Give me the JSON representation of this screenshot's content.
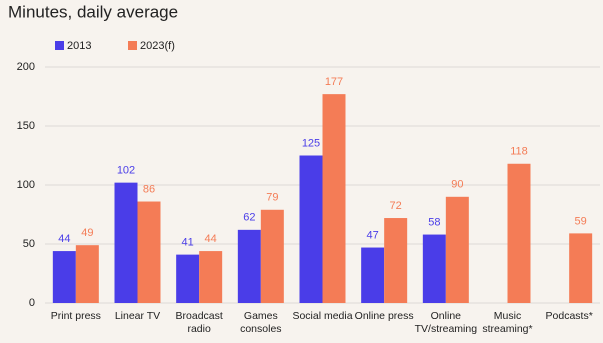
{
  "chart_data": {
    "type": "bar",
    "title": "Minutes, daily average",
    "categories": [
      "Print press",
      "Linear TV",
      "Broadcast\nradio",
      "Games\nconsoles",
      "Social media",
      "Online press",
      "Online\nTV/streaming",
      "Music\nstreaming*",
      "Podcasts*"
    ],
    "series": [
      {
        "name": "2013",
        "color": "#4a3de8",
        "values": [
          44,
          102,
          41,
          62,
          125,
          47,
          58,
          null,
          null
        ]
      },
      {
        "name": "2023(f)",
        "color": "#f47c56",
        "values": [
          49,
          86,
          44,
          79,
          177,
          72,
          90,
          118,
          59
        ]
      }
    ],
    "ylim": [
      0,
      200
    ],
    "yticks": [
      0,
      50,
      100,
      150,
      200
    ],
    "grid": true
  }
}
